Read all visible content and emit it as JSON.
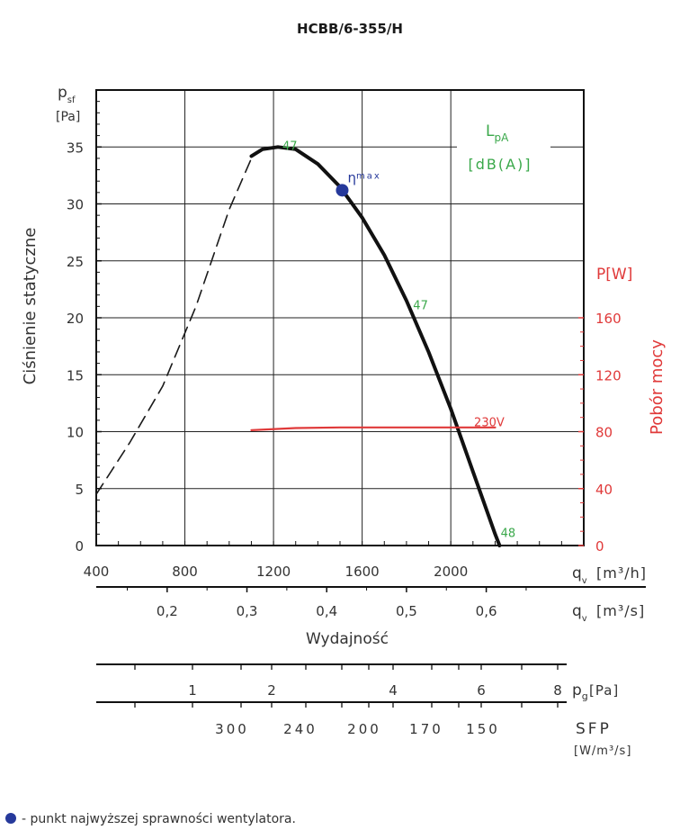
{
  "chart_data": {
    "type": "line",
    "title": "HCBB/6-355/H",
    "ylabel": "Ciśnienie statyczne",
    "y_symbol": "p",
    "y_sub": "sf",
    "y_unit": "[Pa]",
    "ylim": [
      0,
      40
    ],
    "y_ticks": [
      0,
      5,
      10,
      15,
      20,
      25,
      30,
      35
    ],
    "x_flow_m3h": {
      "label": "q",
      "sub": "v",
      "unit": "[m³/h]",
      "ticks": [
        400,
        800,
        1200,
        1600,
        2000
      ],
      "xlim": [
        400,
        2600
      ]
    },
    "x_flow_m3s": {
      "label": "q",
      "sub": "v",
      "unit": "[m³/s]",
      "ticks": [
        "0,2",
        "0,3",
        "0,4",
        "0,5",
        "0,6"
      ],
      "tick_values": [
        0.2,
        0.3,
        0.4,
        0.5,
        0.6
      ]
    },
    "xlabel": "Wydajność",
    "y2_label": "Pobór mocy",
    "y2_unit": "P[W]",
    "y2_ticks": [
      0,
      40,
      80,
      120,
      160
    ],
    "y2_range": [
      0,
      160
    ],
    "noise_label": "L",
    "noise_sub": "pA",
    "noise_unit": "[dB(A)]",
    "series": [
      {
        "name": "stall region (dashed)",
        "style": "dashed",
        "color": "#1a1a1a",
        "x": [
          400,
          550,
          700,
          850,
          1000,
          1100
        ],
        "y": [
          4.5,
          9,
          14,
          21,
          29.5,
          34
        ]
      },
      {
        "name": "fan curve",
        "style": "solid",
        "color": "#111111",
        "x": [
          1100,
          1150,
          1220,
          1300,
          1400,
          1500,
          1600,
          1700,
          1800,
          1900,
          2000,
          2100,
          2200,
          2220
        ],
        "y": [
          34.2,
          34.8,
          35,
          34.8,
          33.5,
          31.5,
          28.8,
          25.5,
          21.5,
          17,
          12,
          6.5,
          1,
          0
        ]
      },
      {
        "name": "230V",
        "style": "solid",
        "color": "#e03a3a",
        "axis": "power",
        "x": [
          1100,
          1300,
          1500,
          1700,
          1900,
          2100,
          2200
        ],
        "y": [
          81,
          82.5,
          83,
          83,
          83,
          83,
          83
        ]
      }
    ],
    "annotations": [
      {
        "text": "47",
        "x": 1240,
        "y": 35,
        "color": "#3aa84a"
      },
      {
        "text": "47",
        "x": 1830,
        "y": 21,
        "color": "#3aa84a"
      },
      {
        "text": "48",
        "x": 2225,
        "y": 1,
        "color": "#3aa84a"
      },
      {
        "text": "230V",
        "x": 2105,
        "y": 10.7,
        "color": "#e03a3a"
      }
    ],
    "eta_max": {
      "label": "η",
      "sub": "max",
      "x": 1510,
      "y": 31.2
    },
    "pressure_scale": {
      "label": "p",
      "sub": "g",
      "unit": "[Pa]",
      "ticks": [
        "1",
        "2",
        "4",
        "6",
        "8"
      ]
    },
    "sfp_scale": {
      "label": "SFP",
      "unit": "[W/m³/s]",
      "ticks": [
        "300",
        "240",
        "200",
        "170",
        "150"
      ]
    }
  },
  "footnote": "- punkt najwyższej sprawności wentylatora.",
  "colors": {
    "curve": "#111111",
    "power": "#e03a3a",
    "noise": "#3aa84a",
    "marker": "#26399b"
  }
}
